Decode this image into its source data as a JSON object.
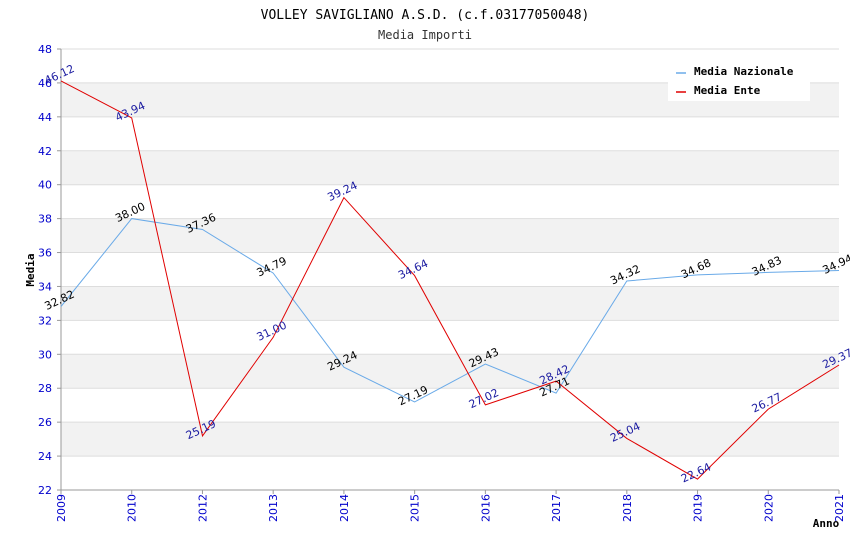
{
  "chart_data": {
    "type": "line",
    "title": "VOLLEY SAVIGLIANO A.S.D. (c.f.03177050048)",
    "subtitle": "Media Importi",
    "xlabel": "Anno",
    "ylabel": "Media",
    "categories": [
      "2009",
      "2010",
      "2012",
      "2013",
      "2014",
      "2015",
      "2016",
      "2017",
      "2018",
      "2019",
      "2020",
      "2021"
    ],
    "ylim": [
      22,
      48
    ],
    "yticks": [
      22,
      24,
      26,
      28,
      30,
      32,
      34,
      36,
      38,
      40,
      42,
      44,
      46,
      48
    ],
    "grid": true,
    "legend_position": "top-right",
    "series": [
      {
        "name": "Media Nazionale",
        "color": "#6aaae8",
        "label_color": "#000000",
        "values": [
          32.82,
          38.0,
          37.36,
          34.79,
          29.24,
          27.19,
          29.43,
          27.71,
          34.32,
          34.68,
          34.83,
          34.94
        ],
        "labels": [
          "32.82",
          "38.00",
          "37.36",
          "34.79",
          "29.24",
          "27.19",
          "29.43",
          "27.71",
          "34.32",
          "34.68",
          "34.83",
          "34.94"
        ]
      },
      {
        "name": "Media Ente",
        "color": "#e00000",
        "label_color": "#1a1aa0",
        "values": [
          46.12,
          43.94,
          25.19,
          31.0,
          39.24,
          34.64,
          27.02,
          28.42,
          25.04,
          22.64,
          26.77,
          29.37
        ],
        "labels": [
          "46.12",
          "43.94",
          "25.19",
          "31.00",
          "39.24",
          "34.64",
          "27.02",
          "28.42",
          "25.04",
          "22.64",
          "26.77",
          "29.37"
        ]
      }
    ],
    "colors": {
      "axis_text": "#0000cc",
      "band": "#f2f2f2",
      "gridline": "#dddddd"
    }
  }
}
